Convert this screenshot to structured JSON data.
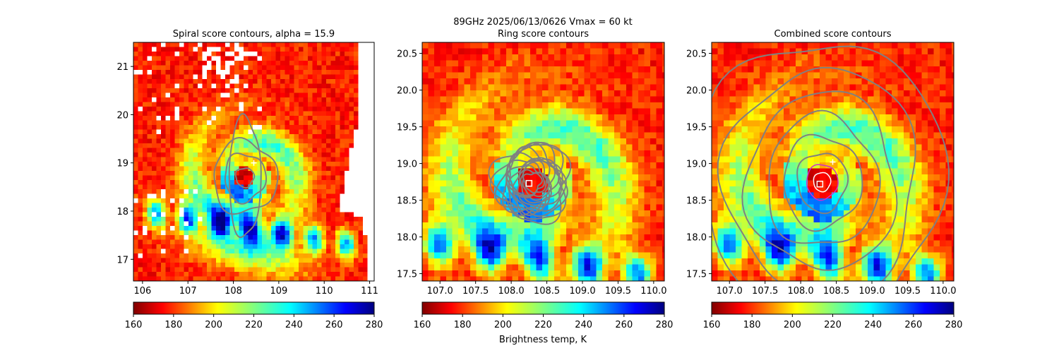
{
  "suptitle": "89GHz  2025/06/13/0626    Vmax = 60 kt",
  "colorbar_label": "Brightness temp, K",
  "colors": {
    "contour": "#808080",
    "ring_contour": "#cc2fcc",
    "deep_blue": "#000080",
    "missing": "#ffffff"
  },
  "chart_data": [
    {
      "type": "heatmap",
      "title": "Spiral score contours, alpha = 15.9",
      "xlim": [
        105.8,
        111.1
      ],
      "ylim": [
        16.55,
        21.5
      ],
      "xticks": [
        "106",
        "107",
        "108",
        "109",
        "110",
        "111"
      ],
      "xtick_values": [
        106,
        107,
        108,
        109,
        110,
        111
      ],
      "yticks": [
        "17",
        "18",
        "19",
        "20",
        "21"
      ],
      "ytick_values": [
        17,
        18,
        19,
        20,
        21
      ],
      "colormap": "jet",
      "clim": [
        160,
        280
      ],
      "colorbar_ticks": [
        "160",
        "180",
        "200",
        "220",
        "240",
        "260",
        "280"
      ],
      "center": [
        108.25,
        18.7
      ],
      "markers": [
        {
          "symbol": "plus",
          "x": 108.45,
          "y": 19.0,
          "color": "#ffffff"
        }
      ]
    },
    {
      "type": "heatmap",
      "title": "Ring score contours",
      "xlim": [
        106.75,
        110.15
      ],
      "ylim": [
        17.4,
        20.65
      ],
      "xticks": [
        "107.0",
        "107.5",
        "108.0",
        "108.5",
        "109.0",
        "109.5",
        "110.0"
      ],
      "xtick_values": [
        107.0,
        107.5,
        108.0,
        108.5,
        109.0,
        109.5,
        110.0
      ],
      "yticks": [
        "17.5",
        "18.0",
        "18.5",
        "19.0",
        "19.5",
        "20.0",
        "20.5"
      ],
      "ytick_values": [
        17.5,
        18.0,
        18.5,
        19.0,
        19.5,
        20.0,
        20.5
      ],
      "colormap": "jet",
      "clim": [
        160,
        280
      ],
      "colorbar_ticks": [
        "160",
        "180",
        "200",
        "220",
        "240",
        "260",
        "280"
      ],
      "center": [
        108.3,
        18.75
      ],
      "markers": [
        {
          "symbol": "square",
          "x": 108.25,
          "y": 18.73,
          "color": "#ffffff"
        }
      ]
    },
    {
      "type": "heatmap",
      "title": "Combined score contours",
      "xlim": [
        106.75,
        110.15
      ],
      "ylim": [
        17.4,
        20.65
      ],
      "xticks": [
        "107.0",
        "107.5",
        "108.0",
        "108.5",
        "109.0",
        "109.5",
        "110.0"
      ],
      "xtick_values": [
        107.0,
        107.5,
        108.0,
        108.5,
        109.0,
        109.5,
        110.0
      ],
      "yticks": [
        "17.5",
        "18.0",
        "18.5",
        "19.0",
        "19.5",
        "20.0",
        "20.5"
      ],
      "ytick_values": [
        17.5,
        18.0,
        18.5,
        19.0,
        19.5,
        20.0,
        20.5
      ],
      "colormap": "jet",
      "clim": [
        160,
        280
      ],
      "colorbar_ticks": [
        "160",
        "180",
        "200",
        "220",
        "240",
        "260",
        "280"
      ],
      "center": [
        108.3,
        18.75
      ],
      "markers": [
        {
          "symbol": "square",
          "x": 108.27,
          "y": 18.72,
          "color": "#ffffff"
        },
        {
          "symbol": "plus",
          "x": 108.45,
          "y": 19.02,
          "color": "#ffffff"
        }
      ]
    }
  ]
}
